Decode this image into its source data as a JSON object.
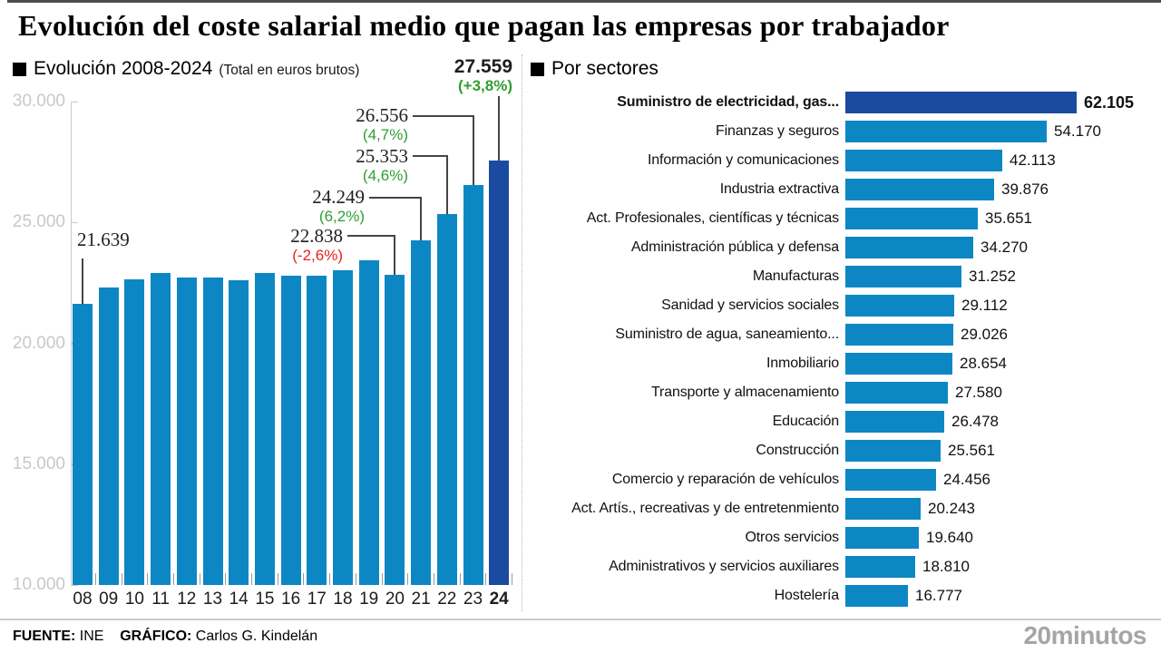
{
  "title": "Evolución del coste salarial medio que pagan las empresas por trabajador",
  "colors": {
    "bar_blue": "#0d87c4",
    "bar_navy": "#1b4ba0",
    "green": "#2f9e32",
    "red": "#e42320",
    "axis_gray": "#c8c8c8",
    "leader_gray": "#454545"
  },
  "footer": {
    "source_label": "FUENTE:",
    "source_value": "INE",
    "credit_label": "GRÁFICO:",
    "credit_value": "Carlos G. Kindelán",
    "brand_bold": "20",
    "brand_light": "minutos"
  },
  "chart_data": [
    {
      "type": "bar",
      "title": "Evolución 2008-2024",
      "subtitle": "(Total en euros brutos)",
      "xlabel": "",
      "ylabel": "euros brutos",
      "ylim": [
        10000,
        30000
      ],
      "grid": false,
      "categories": [
        "08",
        "09",
        "10",
        "11",
        "12",
        "13",
        "14",
        "15",
        "16",
        "17",
        "18",
        "19",
        "20",
        "21",
        "22",
        "23",
        "24"
      ],
      "values": [
        21639,
        22316,
        22651,
        22900,
        22731,
        22718,
        22606,
        22903,
        22811,
        22813,
        23003,
        23450,
        22838,
        24249,
        25353,
        26556,
        27559
      ],
      "y_ticks": [
        {
          "label": "30.000",
          "value": 30000
        },
        {
          "label": "25.000",
          "value": 25000
        },
        {
          "label": "20.000",
          "value": 20000
        },
        {
          "label": "15.000",
          "value": 15000
        },
        {
          "label": "10.000",
          "value": 10000
        }
      ],
      "annotations": [
        {
          "year": "08",
          "value_label": "21.639",
          "pct_label": "",
          "pct_color": "",
          "bold": false
        },
        {
          "year": "20",
          "value_label": "22.838",
          "pct_label": "(-2,6%)",
          "pct_color": "red",
          "bold": false
        },
        {
          "year": "21",
          "value_label": "24.249",
          "pct_label": "(6,2%)",
          "pct_color": "green",
          "bold": false
        },
        {
          "year": "22",
          "value_label": "25.353",
          "pct_label": "(4,6%)",
          "pct_color": "green",
          "bold": false
        },
        {
          "year": "23",
          "value_label": "26.556",
          "pct_label": "(4,7%)",
          "pct_color": "green",
          "bold": false
        },
        {
          "year": "24",
          "value_label": "27.559",
          "pct_label": "(+3,8%)",
          "pct_color": "green",
          "bold": true
        }
      ]
    },
    {
      "type": "bar",
      "orientation": "horizontal",
      "title": "Por sectores",
      "highlight_index": 0,
      "categories": [
        "Suministro de electricidad, gas...",
        "Finanzas y seguros",
        "Información y comunicaciones",
        "Industria extractiva",
        "Act. Profesionales, científicas y técnicas",
        "Administración pública y defensa",
        "Manufacturas",
        "Sanidad y servicios sociales",
        "Suministro de agua, saneamiento...",
        "Inmobiliario",
        "Transporte y almacenamiento",
        "Educación",
        "Construcción",
        "Comercio y reparación de vehículos",
        "Act. Artís., recreativas y de entretenmiento",
        "Otros servicios",
        "Administrativos y servicios auxiliares",
        "Hostelería"
      ],
      "values": [
        62105,
        54170,
        42113,
        39876,
        35651,
        34270,
        31252,
        29112,
        29026,
        28654,
        27580,
        26478,
        25561,
        24456,
        20243,
        19640,
        18810,
        16777
      ],
      "value_labels": [
        "62.105",
        "54.170",
        "42.113",
        "39.876",
        "35.651",
        "34.270",
        "31.252",
        "29.112",
        "29.026",
        "28.654",
        "27.580",
        "26.478",
        "25.561",
        "24.456",
        "20.243",
        "19.640",
        "18.810",
        "16.777"
      ]
    }
  ]
}
